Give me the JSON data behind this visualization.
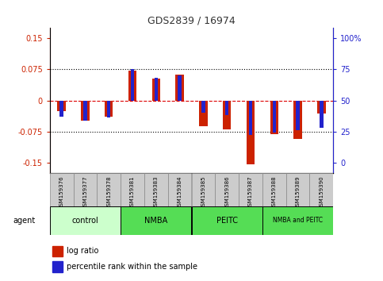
{
  "title": "GDS2839 / 16974",
  "samples": [
    "GSM159376",
    "GSM159377",
    "GSM159378",
    "GSM159381",
    "GSM159383",
    "GSM159384",
    "GSM159385",
    "GSM159386",
    "GSM159387",
    "GSM159388",
    "GSM159389",
    "GSM159390"
  ],
  "log_ratio": [
    -0.025,
    -0.048,
    -0.04,
    0.072,
    0.052,
    0.063,
    -0.063,
    -0.07,
    -0.155,
    -0.082,
    -0.093,
    -0.032
  ],
  "percentile_rank": [
    37,
    34,
    36,
    75,
    68,
    70,
    40,
    38,
    22,
    24,
    26,
    28
  ],
  "groups": [
    {
      "label": "control",
      "start": 0,
      "end": 3,
      "color": "#ccffcc"
    },
    {
      "label": "NMBA",
      "start": 3,
      "end": 6,
      "color": "#55dd55"
    },
    {
      "label": "PEITC",
      "start": 6,
      "end": 9,
      "color": "#55dd55"
    },
    {
      "label": "NMBA and PEITC",
      "start": 9,
      "end": 12,
      "color": "#55dd55"
    }
  ],
  "ylim": [
    -0.175,
    0.175
  ],
  "yticks_left": [
    -0.15,
    -0.075,
    0,
    0.075,
    0.15
  ],
  "yticks_right": [
    0,
    25,
    50,
    75,
    100
  ],
  "bar_color_red": "#cc2200",
  "bar_color_blue": "#2222cc",
  "red_bar_width": 0.35,
  "blue_bar_width": 0.15,
  "agent_label": "agent",
  "legend_red": "log ratio",
  "legend_blue": "percentile rank within the sample",
  "hline_dotted": [
    -0.075,
    0.075
  ],
  "hline_dashed": [
    0
  ],
  "title_color": "#333333",
  "sample_box_color": "#cccccc",
  "label_fontsize": 5,
  "tick_fontsize": 7
}
